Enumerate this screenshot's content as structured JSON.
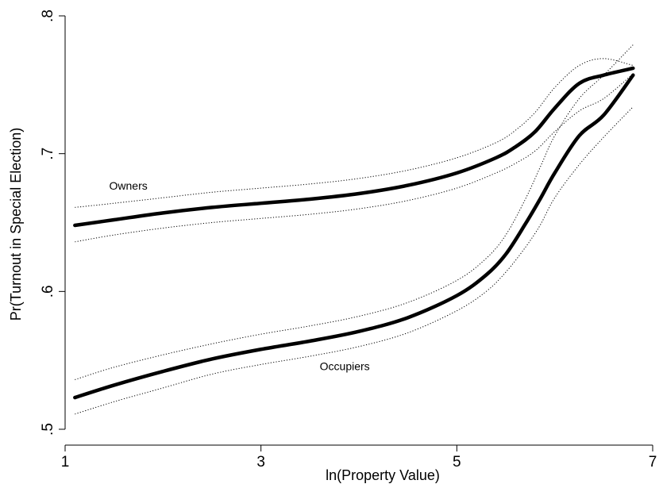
{
  "chart_data": {
    "type": "line",
    "title": "",
    "xlabel": "ln(Property Value)",
    "ylabel": "Pr(Turnout in Special Election)",
    "xlim": [
      1,
      7
    ],
    "ylim": [
      0.5,
      0.8
    ],
    "xticks": [
      {
        "value": 1,
        "label": "1"
      },
      {
        "value": 3,
        "label": "3"
      },
      {
        "value": 5,
        "label": "5"
      },
      {
        "value": 7,
        "label": "7"
      }
    ],
    "yticks": [
      {
        "value": 0.5,
        "label": ".5"
      },
      {
        "value": 0.6,
        "label": ".6"
      },
      {
        "value": 0.7,
        "label": ".7"
      },
      {
        "value": 0.8,
        "label": ".8"
      }
    ],
    "grid": false,
    "legend": "none",
    "series": [
      {
        "name": "Owners",
        "role": "fit",
        "x": [
          1.1,
          1.5,
          2.0,
          2.5,
          3.0,
          3.5,
          4.0,
          4.5,
          5.0,
          5.4,
          5.6,
          5.8,
          6.0,
          6.25,
          6.5,
          6.8
        ],
        "y": [
          0.648,
          0.652,
          0.657,
          0.661,
          0.664,
          0.667,
          0.671,
          0.677,
          0.686,
          0.697,
          0.705,
          0.716,
          0.733,
          0.751,
          0.757,
          0.762
        ]
      },
      {
        "name": "",
        "role": "ci_upper",
        "x": [
          1.1,
          1.5,
          2.0,
          2.5,
          3.0,
          3.5,
          4.0,
          4.5,
          5.0,
          5.4,
          5.6,
          5.8,
          6.0,
          6.25,
          6.5,
          6.8
        ],
        "y": [
          0.661,
          0.664,
          0.668,
          0.672,
          0.675,
          0.678,
          0.682,
          0.688,
          0.697,
          0.708,
          0.717,
          0.73,
          0.748,
          0.764,
          0.769,
          0.764
        ]
      },
      {
        "name": "",
        "role": "ci_lower",
        "x": [
          1.1,
          1.5,
          2.0,
          2.5,
          3.0,
          3.5,
          4.0,
          4.5,
          5.0,
          5.4,
          5.6,
          5.8,
          6.0,
          6.25,
          6.5,
          6.8
        ],
        "y": [
          0.636,
          0.641,
          0.646,
          0.65,
          0.653,
          0.656,
          0.66,
          0.666,
          0.675,
          0.686,
          0.693,
          0.702,
          0.716,
          0.731,
          0.74,
          0.758
        ]
      },
      {
        "name": "Occupiers",
        "role": "fit",
        "x": [
          1.1,
          1.5,
          2.0,
          2.5,
          3.0,
          3.5,
          4.0,
          4.5,
          5.0,
          5.3,
          5.5,
          5.7,
          5.85,
          6.0,
          6.25,
          6.5,
          6.8
        ],
        "y": [
          0.523,
          0.532,
          0.542,
          0.551,
          0.558,
          0.564,
          0.571,
          0.581,
          0.597,
          0.612,
          0.627,
          0.649,
          0.667,
          0.686,
          0.713,
          0.728,
          0.757
        ]
      },
      {
        "name": "",
        "role": "ci_upper",
        "x": [
          1.1,
          1.5,
          2.0,
          2.5,
          3.0,
          3.5,
          4.0,
          4.5,
          5.0,
          5.3,
          5.5,
          5.7,
          5.85,
          6.0,
          6.25,
          6.5,
          6.8
        ],
        "y": [
          0.536,
          0.545,
          0.554,
          0.562,
          0.569,
          0.575,
          0.582,
          0.592,
          0.608,
          0.624,
          0.641,
          0.667,
          0.69,
          0.713,
          0.74,
          0.757,
          0.779
        ]
      },
      {
        "name": "",
        "role": "ci_lower",
        "x": [
          1.1,
          1.5,
          2.0,
          2.5,
          3.0,
          3.5,
          4.0,
          4.5,
          5.0,
          5.3,
          5.5,
          5.7,
          5.85,
          6.0,
          6.25,
          6.5,
          6.8
        ],
        "y": [
          0.511,
          0.52,
          0.53,
          0.54,
          0.547,
          0.553,
          0.56,
          0.57,
          0.586,
          0.6,
          0.614,
          0.632,
          0.648,
          0.668,
          0.692,
          0.712,
          0.734
        ]
      }
    ],
    "annotations": [
      {
        "text": "Owners",
        "x": 1.45,
        "y": 0.674
      },
      {
        "text": "Occupiers",
        "x": 3.6,
        "y": 0.543
      }
    ]
  }
}
